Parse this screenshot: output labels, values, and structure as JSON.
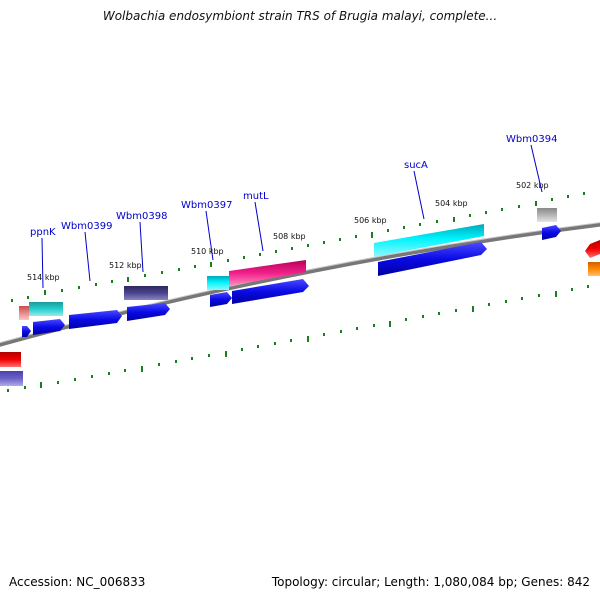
{
  "title": "Wolbachia endosymbiont strain TRS of Brugia malayi, complete...",
  "footer": {
    "accession": "Accession: NC_006833",
    "stats": "Topology: circular; Length: 1,080,084 bp; Genes: 842"
  },
  "colors": {
    "backbone": "#777777",
    "ticks": "#1a7f1a",
    "gene_label": "#0000cc",
    "cds_blue": "#0a0ae6",
    "cyan": "#00d8e8",
    "teal": "#1fbcbc",
    "magenta": "#e8187a",
    "navy": "#403a80",
    "grey": "#aaaaaa",
    "red": "#e80000",
    "salmon": "#e88080",
    "orange": "#f07a00",
    "lavender": "#6a62c8"
  },
  "scale_labels": [
    "514 kbp",
    "512 kbp",
    "510 kbp",
    "508 kbp",
    "506 kbp",
    "504 kbp",
    "502 kbp"
  ],
  "gene_labels": [
    "ppnK",
    "Wbm0399",
    "Wbm0398",
    "Wbm0397",
    "mutL",
    "sucA",
    "Wbm0394"
  ]
}
